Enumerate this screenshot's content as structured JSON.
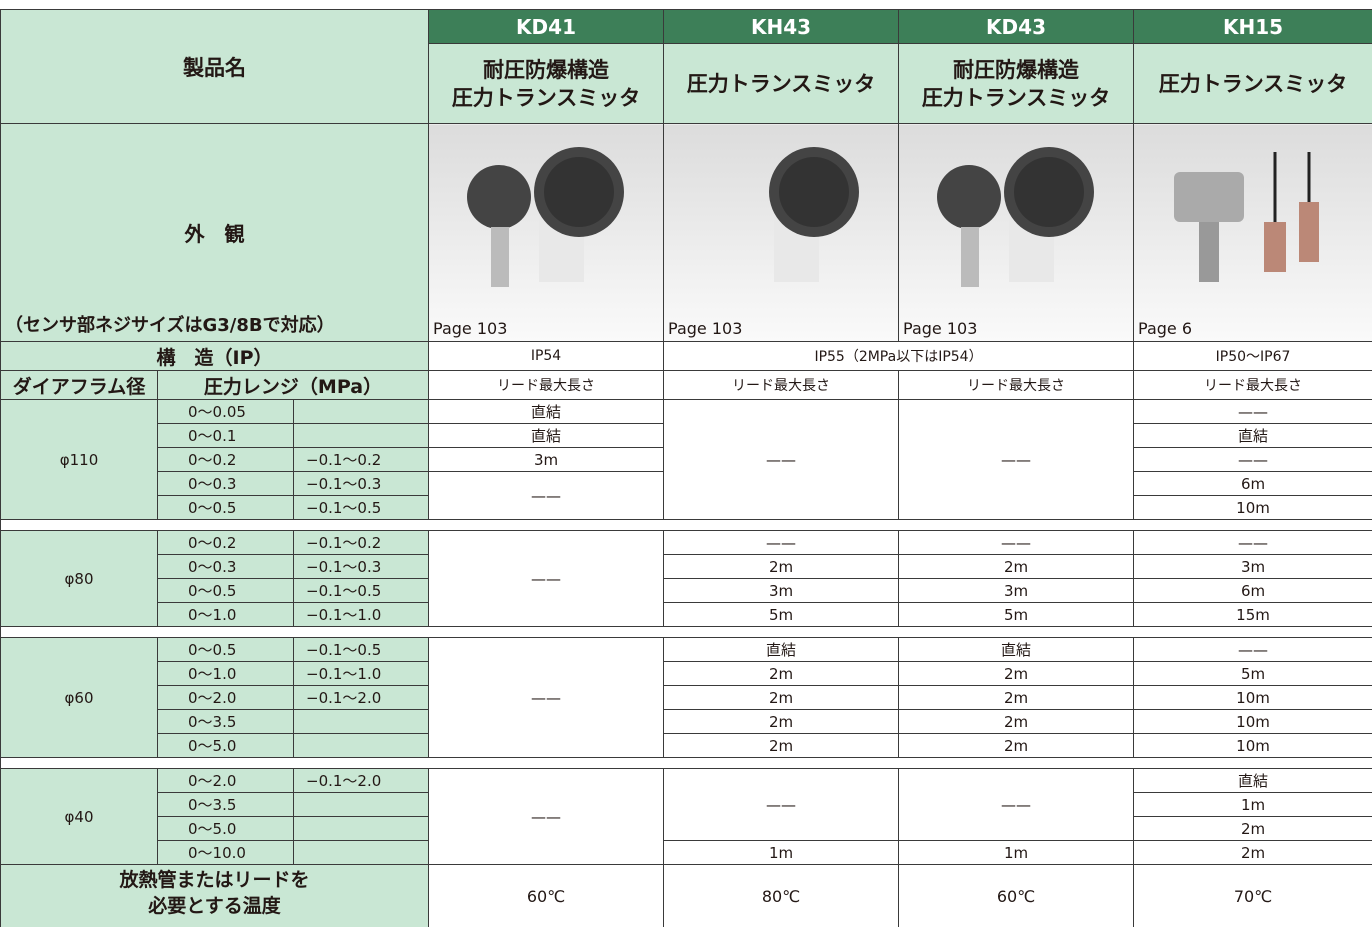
{
  "header": {
    "product_label": "製品名",
    "appearance_label": "外　観",
    "appearance_note": "（センサ部ネジサイズはG3/8Bで対応）",
    "structure_label": "構　造（IP）",
    "diaphragm_label": "ダイアフラム径",
    "range_label": "圧力レンジ（MPa）",
    "temperature_label": [
      "放熱管またはリードを",
      "必要とする温度"
    ]
  },
  "products": [
    {
      "model": "KD41",
      "name": [
        "耐圧防爆構造",
        "圧力トランスミッタ"
      ],
      "page": "Page 103",
      "lead_header": "リード最大長さ",
      "temperature": "60℃"
    },
    {
      "model": "KH43",
      "name": [
        "圧力トランスミッタ"
      ],
      "page": "Page 103",
      "lead_header": "リード最大長さ",
      "temperature": "80℃"
    },
    {
      "model": "KD43",
      "name": [
        "耐圧防爆構造",
        "圧力トランスミッタ"
      ],
      "page": "Page 103",
      "lead_header": "リード最大長さ",
      "temperature": "60℃"
    },
    {
      "model": "KH15",
      "name": [
        "圧力トランスミッタ"
      ],
      "page": "Page 6",
      "lead_header": "リード最大長さ",
      "temperature": "70℃"
    }
  ],
  "structure": [
    "IP54",
    "IP55（2MPa以下はIP54）",
    "IP50〜IP67"
  ],
  "groups": [
    {
      "diameter": "φ110",
      "ranges": [
        "0〜0.05",
        "0〜0.1",
        "0〜0.2",
        "0〜0.3",
        "0〜0.5"
      ],
      "negative_ranges": [
        null,
        null,
        "−0.1〜0.2",
        "−0.1〜0.3",
        "−0.1〜0.5"
      ],
      "leads": [
        [
          "直結",
          "直結",
          "3m",
          "——"
        ],
        [
          "——"
        ],
        [
          "——"
        ],
        [
          "——",
          "直結",
          "——",
          "6m",
          "10m"
        ]
      ]
    },
    {
      "diameter": "φ80",
      "ranges": [
        "0〜0.2",
        "0〜0.3",
        "0〜0.5",
        "0〜1.0"
      ],
      "negative_ranges": [
        "−0.1〜0.2",
        "−0.1〜0.3",
        "−0.1〜0.5",
        "−0.1〜1.0"
      ],
      "leads": [
        [
          "——"
        ],
        [
          "——",
          "2m",
          "3m",
          "5m"
        ],
        [
          "——",
          "2m",
          "3m",
          "5m"
        ],
        [
          "——",
          "3m",
          "6m",
          "15m"
        ]
      ]
    },
    {
      "diameter": "φ60",
      "ranges": [
        "0〜0.5",
        "0〜1.0",
        "0〜2.0",
        "0〜3.5",
        "0〜5.0"
      ],
      "negative_ranges": [
        "−0.1〜0.5",
        "−0.1〜1.0",
        "−0.1〜2.0",
        null,
        null
      ],
      "leads": [
        [
          "——"
        ],
        [
          "直結",
          "2m",
          "2m",
          "2m",
          "2m"
        ],
        [
          "直結",
          "2m",
          "2m",
          "2m",
          "2m"
        ],
        [
          "——",
          "5m",
          "10m",
          "10m",
          "10m"
        ]
      ]
    },
    {
      "diameter": "φ40",
      "ranges": [
        "0〜2.0",
        "0〜3.5",
        "0〜5.0",
        "0〜10.0"
      ],
      "negative_ranges": [
        "−0.1〜2.0",
        null,
        null,
        null
      ],
      "leads": [
        [
          "——"
        ],
        [
          "——",
          "1m"
        ],
        [
          "——",
          "1m"
        ],
        [
          "直結",
          "1m",
          "2m",
          "2m"
        ]
      ]
    }
  ]
}
